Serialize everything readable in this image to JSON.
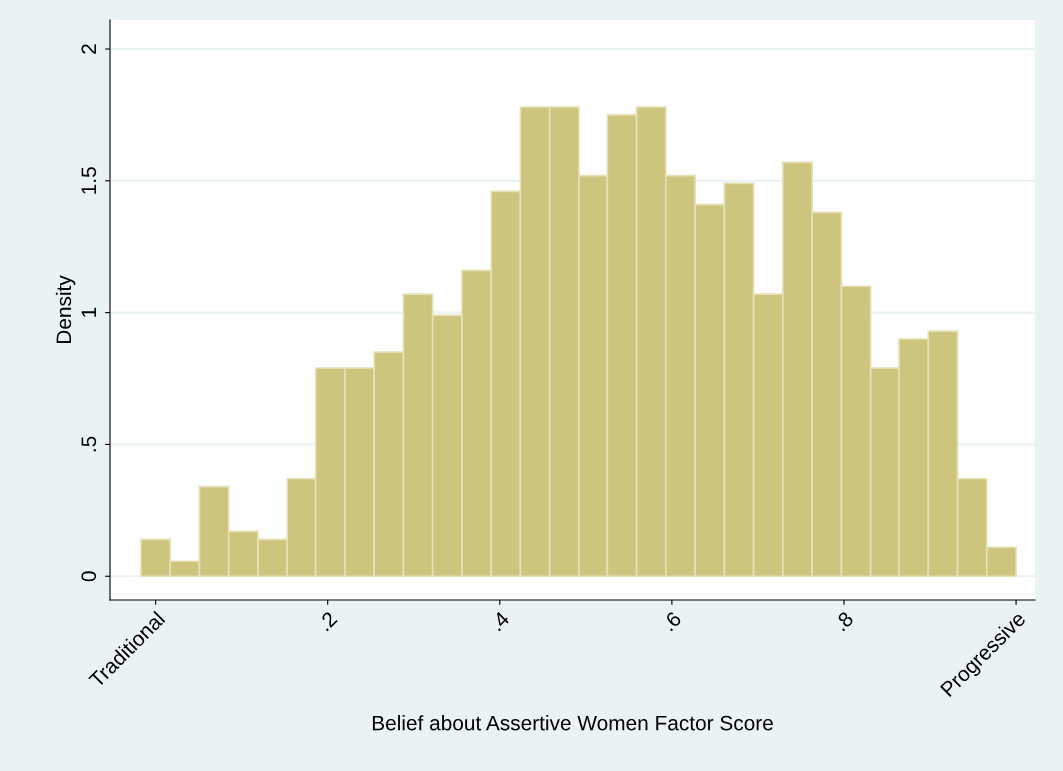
{
  "chart_data": {
    "type": "histogram",
    "xlabel": "Belief about Assertive Women Factor Score",
    "ylabel": "Density",
    "bins": [
      -0.017,
      0.017,
      0.051,
      0.085,
      0.119,
      0.153,
      0.186,
      0.22,
      0.254,
      0.288,
      0.322,
      0.356,
      0.39,
      0.424,
      0.458,
      0.492,
      0.525,
      0.559,
      0.593,
      0.627,
      0.661,
      0.695,
      0.729,
      0.763,
      0.797,
      0.831,
      0.864,
      0.898,
      0.932,
      0.966,
      1.0
    ],
    "values": [
      0.14,
      0.057,
      0.34,
      0.17,
      0.14,
      0.37,
      0.79,
      0.79,
      0.85,
      1.07,
      0.99,
      1.16,
      1.46,
      1.78,
      1.78,
      1.52,
      1.75,
      1.78,
      1.52,
      1.41,
      1.49,
      1.07,
      1.57,
      1.38,
      1.1,
      0.79,
      0.9,
      0.93,
      0.37,
      0.11
    ],
    "color": "#cdc47e",
    "xlim": [
      -0.053,
      1.022
    ],
    "ylim": [
      -0.09,
      2.11
    ],
    "xticks": [
      {
        "value": 0,
        "label": "Traditional"
      },
      {
        "value": 0.2,
        "label": ".2"
      },
      {
        "value": 0.4,
        "label": ".4"
      },
      {
        "value": 0.6,
        "label": ".6"
      },
      {
        "value": 0.8,
        "label": ".8"
      },
      {
        "value": 1,
        "label": "Progressive"
      }
    ],
    "yticks": [
      0,
      {
        "value": 0.5,
        "label": ".5"
      },
      1,
      {
        "value": 1.5,
        "label": "1.5"
      },
      2
    ],
    "grid": "y"
  }
}
